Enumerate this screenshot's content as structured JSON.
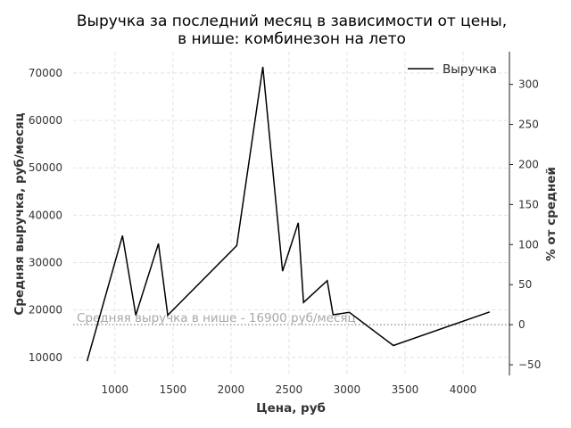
{
  "chart_data": {
    "type": "line",
    "title": [
      "Выручка за последний месяц в зависимости от цены,",
      "в нише: комбинезон на лето"
    ],
    "xlabel": "Цена, руб",
    "ylabel": "Средняя выручка, руб/месяц",
    "y2label": "% от средней",
    "xlim": [
      640,
      4400
    ],
    "ylim": [
      6200,
      74500
    ],
    "y2lim": [
      -63.3,
      340.8
    ],
    "x_ticks": [
      1000,
      1500,
      2000,
      2500,
      3000,
      3500,
      4000
    ],
    "y_ticks": [
      10000,
      20000,
      30000,
      40000,
      50000,
      60000,
      70000
    ],
    "y2_ticks": [
      -50,
      0,
      50,
      100,
      150,
      200,
      250,
      300
    ],
    "grid": true,
    "legend": {
      "position": "top-right",
      "label": "Выручка"
    },
    "series": [
      {
        "name": "Выручка",
        "color": "#000000",
        "x": [
          760,
          1065,
          1180,
          1375,
          1455,
          2050,
          2275,
          2445,
          2580,
          2625,
          2830,
          2880,
          3020,
          3400,
          4230
        ],
        "y": [
          9200,
          35700,
          18900,
          34000,
          18900,
          33600,
          71300,
          28200,
          38400,
          21600,
          26200,
          19000,
          19500,
          12500,
          19600
        ]
      }
    ],
    "reference_line": {
      "value": 16900,
      "label": "Средняя выручка в нише - 16900 руб/месяц",
      "color": "#9a9a9a",
      "style": "dotted"
    }
  }
}
